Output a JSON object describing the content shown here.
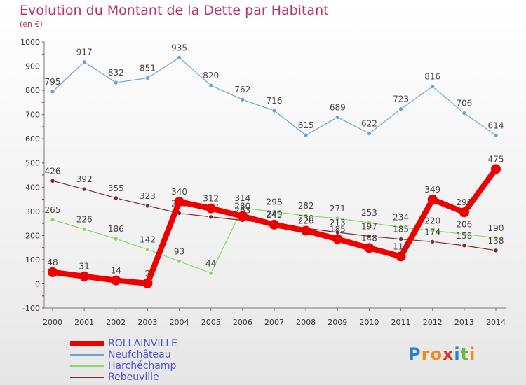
{
  "title": "Evolution du Montant de la Dette par Habitant",
  "subtitle": "(en €)",
  "logo": {
    "chars": [
      "P",
      "r",
      "o",
      "x",
      "i",
      "t",
      "i"
    ],
    "colors": [
      "#2a7fd0",
      "#f08a1d",
      "#f08a1d",
      "#d63a2a",
      "#2a7fd0",
      "#6db33f",
      "#f08a1d"
    ]
  },
  "chart_data": {
    "type": "line",
    "title": "Evolution du Montant de la Dette par Habitant",
    "ylabel": "(en €)",
    "x": [
      "2000",
      "2001",
      "2002",
      "2003",
      "2004",
      "2005",
      "2006",
      "2007",
      "2008",
      "2009",
      "2010",
      "2011",
      "2012",
      "2013",
      "2014"
    ],
    "y_ticks": [
      "1000",
      "900",
      "800",
      "700",
      "600",
      "500",
      "400",
      "300",
      "200",
      "100",
      "0",
      "-100"
    ],
    "ylim": [
      -100,
      1000
    ],
    "grid": false,
    "legend_position": "bottom-left",
    "series": [
      {
        "name": "ROLLAINVILLE",
        "color": "#ee0000",
        "values": [
          48,
          31,
          14,
          2,
          340,
          312,
          280,
          245,
          220,
          185,
          148,
          113,
          349,
          296,
          475
        ],
        "labels": [
          "48",
          "31",
          "14",
          "2",
          "340",
          "312",
          "280",
          "245",
          "220",
          "185",
          "148",
          "113",
          "349",
          "296",
          "475"
        ]
      },
      {
        "name": "Neufchâteau",
        "color": "#6ba3d8",
        "values": [
          795,
          917,
          832,
          851,
          935,
          820,
          762,
          716,
          615,
          689,
          622,
          723,
          816,
          706,
          614
        ],
        "labels": [
          "795",
          "917",
          "832",
          "851",
          "935",
          "820",
          "762",
          "716",
          "615",
          "689",
          "622",
          "723",
          "816",
          "706",
          "614"
        ]
      },
      {
        "name": "Harchéchamp",
        "color": "#8fd46a",
        "values": [
          265,
          226,
          186,
          142,
          93,
          44,
          314,
          298,
          282,
          271,
          253,
          234,
          220,
          206,
          190
        ],
        "labels": [
          "265",
          "226",
          "186",
          "142",
          "93",
          "44",
          "314",
          "298",
          "282",
          "271",
          "253",
          "234",
          "220",
          "206",
          "190"
        ]
      },
      {
        "name": "Rebeuville",
        "color": "#7a2a2a",
        "values": [
          426,
          392,
          355,
          323,
          292,
          277,
          263,
          249,
          230,
          213,
          197,
          185,
          174,
          158,
          138
        ],
        "labels": [
          "426",
          "392",
          "355",
          "323",
          "292",
          "277",
          "263",
          "249",
          "230",
          "213",
          "197",
          "185",
          "174",
          "158",
          "138"
        ]
      }
    ]
  }
}
